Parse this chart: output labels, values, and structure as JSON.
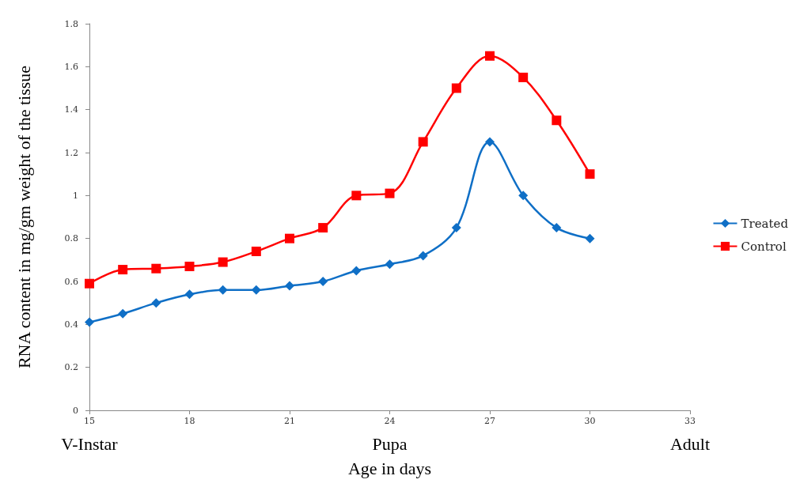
{
  "chart_data": {
    "type": "line",
    "xlabel": "Age in days",
    "ylabel": "RNA content in mg/gm weight of the tissue",
    "x": [
      15,
      16,
      17,
      18,
      19,
      20,
      21,
      22,
      23,
      24,
      25,
      26,
      27,
      28,
      29,
      30
    ],
    "series": [
      {
        "name": "Treated",
        "color": "#0f6fc6",
        "marker": "diamond",
        "values": [
          0.41,
          0.45,
          0.5,
          0.54,
          0.56,
          0.56,
          0.58,
          0.6,
          0.65,
          0.68,
          0.72,
          0.85,
          1.25,
          1.0,
          0.85,
          0.8
        ]
      },
      {
        "name": "Control",
        "color": "#ff0000",
        "marker": "square",
        "values": [
          0.59,
          0.655,
          0.66,
          0.67,
          0.69,
          0.74,
          0.8,
          0.85,
          1.0,
          1.01,
          1.25,
          1.5,
          1.65,
          1.55,
          1.35,
          1.1
        ]
      }
    ],
    "xlim": [
      15,
      33
    ],
    "xticks": [
      15,
      18,
      21,
      24,
      27,
      30,
      33
    ],
    "ylim": [
      0,
      1.8
    ],
    "yticks": [
      0,
      0.2,
      0.4,
      0.6,
      0.8,
      1,
      1.2,
      1.4,
      1.6,
      1.8
    ],
    "annotations": [
      "V-Instar",
      "Pupa",
      "Adult"
    ],
    "legend": "right",
    "grid": false
  }
}
